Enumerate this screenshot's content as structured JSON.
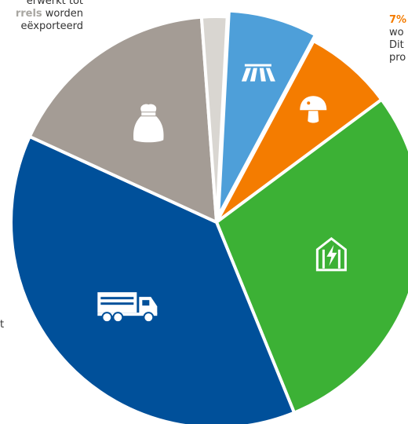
{
  "chart_data": {
    "type": "pie",
    "title": "",
    "exploded_slice": 0,
    "slices": [
      {
        "icon": "field-icon",
        "color": "#4e9fd9",
        "value": 7
      },
      {
        "icon": "mushroom-icon",
        "color": "#f47c00",
        "value": 7
      },
      {
        "icon": "greenhouse-energy-icon",
        "color": "#3cb135",
        "value": 29
      },
      {
        "icon": "truck-icon",
        "color": "#00509a",
        "value": 38
      },
      {
        "icon": "sack-icon",
        "color": "#a49c95",
        "value": 17
      },
      {
        "icon": "",
        "color": "#d9d6d1",
        "value": 2
      }
    ]
  },
  "annotations": {
    "left": {
      "line1": "erwerkt tot",
      "line2_highlight": "rrels",
      "line2_rest": " worden",
      "line3": "eëxporteerd"
    },
    "right": {
      "highlight": "7%",
      "line2": "wo",
      "line3": "Dit",
      "line4": "pro"
    },
    "left_fragment": "t"
  }
}
